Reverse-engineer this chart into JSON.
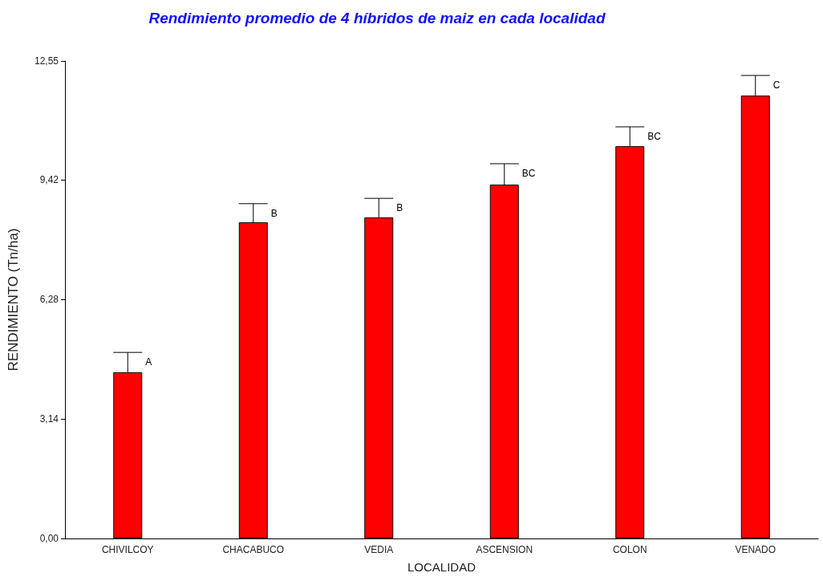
{
  "chart_data": {
    "type": "bar",
    "title": "Rendimiento promedio de 4 híbridos de maiz en cada localidad",
    "xlabel": "LOCALIDAD",
    "ylabel": "RENDIMIENTO (Tn/ha)",
    "categories": [
      "CHIVILCOY",
      "CHACABUCO",
      "VEDIA",
      "ASCENSION",
      "COLON",
      "VENADO"
    ],
    "values": [
      4.37,
      8.31,
      8.44,
      9.3,
      10.31,
      11.64
    ],
    "errors": [
      [
        4.37,
        4.89
      ],
      [
        8.31,
        8.8
      ],
      [
        8.44,
        8.94
      ],
      [
        9.3,
        9.85
      ],
      [
        10.31,
        10.82
      ],
      [
        11.64,
        12.17
      ]
    ],
    "color": "#ff0000",
    "ylim": [
      0,
      12.55
    ],
    "yticks": [
      {
        "value": 0,
        "label": "0,00"
      },
      {
        "value": 3.14,
        "label": "3,14"
      },
      {
        "value": 6.28,
        "label": "6,28"
      },
      {
        "value": 9.42,
        "label": "9,42"
      },
      {
        "value": 12.55,
        "label": "12,55"
      }
    ],
    "annotations": [
      "A",
      "B",
      "B",
      "BC",
      "BC",
      "C"
    ],
    "grid": false
  }
}
